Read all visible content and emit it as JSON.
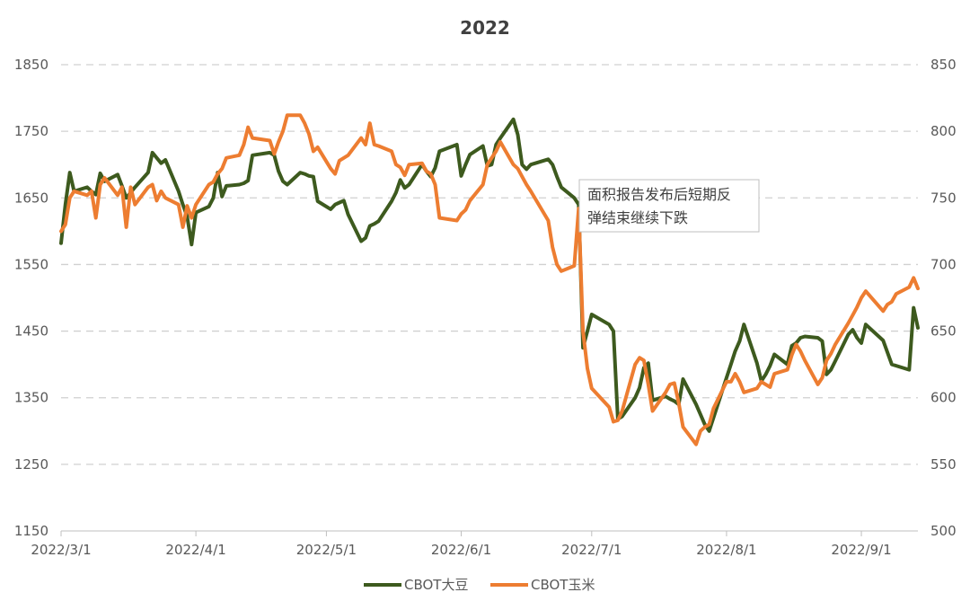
{
  "chart_data": {
    "type": "line",
    "title": "2022",
    "legend_position": "bottom",
    "grid": "horizontal dashed",
    "x_ticks": [
      "2022/3/1",
      "2022/4/1",
      "2022/5/1",
      "2022/6/1",
      "2022/7/1",
      "2022/8/1",
      "2022/9/1"
    ],
    "x_range": [
      "2022-03-01",
      "2022-09-14"
    ],
    "y_left": {
      "ylim": [
        1150,
        1850
      ],
      "ticks": [
        1150,
        1250,
        1350,
        1450,
        1550,
        1650,
        1750,
        1850
      ]
    },
    "y_right": {
      "ylim": [
        500,
        850
      ],
      "ticks": [
        500,
        550,
        600,
        650,
        700,
        750,
        800,
        850
      ]
    },
    "series": [
      {
        "name": "CBOT大豆",
        "axis": "left",
        "color": "#3d5a1e",
        "points": [
          [
            "2022-03-01",
            1582
          ],
          [
            "2022-03-02",
            1640
          ],
          [
            "2022-03-03",
            1688
          ],
          [
            "2022-03-04",
            1660
          ],
          [
            "2022-03-07",
            1666
          ],
          [
            "2022-03-08",
            1660
          ],
          [
            "2022-03-09",
            1655
          ],
          [
            "2022-03-10",
            1687
          ],
          [
            "2022-03-11",
            1675
          ],
          [
            "2022-03-14",
            1685
          ],
          [
            "2022-03-15",
            1668
          ],
          [
            "2022-03-16",
            1650
          ],
          [
            "2022-03-17",
            1658
          ],
          [
            "2022-03-18",
            1666
          ],
          [
            "2022-03-21",
            1688
          ],
          [
            "2022-03-22",
            1718
          ],
          [
            "2022-03-23",
            1710
          ],
          [
            "2022-03-24",
            1702
          ],
          [
            "2022-03-25",
            1707
          ],
          [
            "2022-03-28",
            1660
          ],
          [
            "2022-03-29",
            1640
          ],
          [
            "2022-03-30",
            1622
          ],
          [
            "2022-03-31",
            1580
          ],
          [
            "2022-04-01",
            1628
          ],
          [
            "2022-04-04",
            1637
          ],
          [
            "2022-04-05",
            1650
          ],
          [
            "2022-04-06",
            1688
          ],
          [
            "2022-04-07",
            1652
          ],
          [
            "2022-04-08",
            1668
          ],
          [
            "2022-04-11",
            1670
          ],
          [
            "2022-04-12",
            1672
          ],
          [
            "2022-04-13",
            1676
          ],
          [
            "2022-04-14",
            1714
          ],
          [
            "2022-04-18",
            1718
          ],
          [
            "2022-04-19",
            1714
          ],
          [
            "2022-04-20",
            1690
          ],
          [
            "2022-04-21",
            1675
          ],
          [
            "2022-04-22",
            1670
          ],
          [
            "2022-04-25",
            1688
          ],
          [
            "2022-04-26",
            1686
          ],
          [
            "2022-04-27",
            1683
          ],
          [
            "2022-04-28",
            1682
          ],
          [
            "2022-04-29",
            1645
          ],
          [
            "2022-05-02",
            1633
          ],
          [
            "2022-05-03",
            1640
          ],
          [
            "2022-05-04",
            1643
          ],
          [
            "2022-05-05",
            1646
          ],
          [
            "2022-05-06",
            1625
          ],
          [
            "2022-05-09",
            1585
          ],
          [
            "2022-05-10",
            1590
          ],
          [
            "2022-05-11",
            1608
          ],
          [
            "2022-05-12",
            1611
          ],
          [
            "2022-05-13",
            1615
          ],
          [
            "2022-05-16",
            1645
          ],
          [
            "2022-05-17",
            1658
          ],
          [
            "2022-05-18",
            1677
          ],
          [
            "2022-05-19",
            1665
          ],
          [
            "2022-05-20",
            1670
          ],
          [
            "2022-05-23",
            1700
          ],
          [
            "2022-05-24",
            1690
          ],
          [
            "2022-05-25",
            1682
          ],
          [
            "2022-05-26",
            1695
          ],
          [
            "2022-05-27",
            1720
          ],
          [
            "2022-05-31",
            1730
          ],
          [
            "2022-06-01",
            1683
          ],
          [
            "2022-06-02",
            1700
          ],
          [
            "2022-06-03",
            1715
          ],
          [
            "2022-06-06",
            1728
          ],
          [
            "2022-06-07",
            1698
          ],
          [
            "2022-06-08",
            1700
          ],
          [
            "2022-06-09",
            1730
          ],
          [
            "2022-06-10",
            1740
          ],
          [
            "2022-06-13",
            1768
          ],
          [
            "2022-06-14",
            1745
          ],
          [
            "2022-06-15",
            1700
          ],
          [
            "2022-06-16",
            1693
          ],
          [
            "2022-06-17",
            1700
          ],
          [
            "2022-06-21",
            1708
          ],
          [
            "2022-06-22",
            1700
          ],
          [
            "2022-06-23",
            1682
          ],
          [
            "2022-06-24",
            1666
          ],
          [
            "2022-06-27",
            1650
          ],
          [
            "2022-06-28",
            1640
          ],
          [
            "2022-06-29",
            1425
          ],
          [
            "2022-06-30",
            1450
          ],
          [
            "2022-07-01",
            1475
          ],
          [
            "2022-07-05",
            1460
          ],
          [
            "2022-07-06",
            1450
          ],
          [
            "2022-07-07",
            1318
          ],
          [
            "2022-07-08",
            1322
          ],
          [
            "2022-07-11",
            1350
          ],
          [
            "2022-07-12",
            1365
          ],
          [
            "2022-07-13",
            1395
          ],
          [
            "2022-07-14",
            1402
          ],
          [
            "2022-07-15",
            1346
          ],
          [
            "2022-07-18",
            1352
          ],
          [
            "2022-07-19",
            1348
          ],
          [
            "2022-07-20",
            1345
          ],
          [
            "2022-07-21",
            1340
          ],
          [
            "2022-07-22",
            1378
          ],
          [
            "2022-07-25",
            1340
          ],
          [
            "2022-07-26",
            1325
          ],
          [
            "2022-07-27",
            1310
          ],
          [
            "2022-07-28",
            1300
          ],
          [
            "2022-07-29",
            1320
          ],
          [
            "2022-08-01",
            1380
          ],
          [
            "2022-08-02",
            1400
          ],
          [
            "2022-08-03",
            1420
          ],
          [
            "2022-08-04",
            1435
          ],
          [
            "2022-08-05",
            1460
          ],
          [
            "2022-08-08",
            1402
          ],
          [
            "2022-08-09",
            1375
          ],
          [
            "2022-08-10",
            1385
          ],
          [
            "2022-08-11",
            1398
          ],
          [
            "2022-08-12",
            1415
          ],
          [
            "2022-08-15",
            1400
          ],
          [
            "2022-08-16",
            1428
          ],
          [
            "2022-08-17",
            1432
          ],
          [
            "2022-08-18",
            1440
          ],
          [
            "2022-08-19",
            1442
          ],
          [
            "2022-08-22",
            1440
          ],
          [
            "2022-08-23",
            1435
          ],
          [
            "2022-08-24",
            1385
          ],
          [
            "2022-08-25",
            1392
          ],
          [
            "2022-08-26",
            1405
          ],
          [
            "2022-08-29",
            1445
          ],
          [
            "2022-08-30",
            1452
          ],
          [
            "2022-08-31",
            1440
          ],
          [
            "2022-09-01",
            1432
          ],
          [
            "2022-09-02",
            1460
          ],
          [
            "2022-09-06",
            1436
          ],
          [
            "2022-09-07",
            1418
          ],
          [
            "2022-09-08",
            1400
          ],
          [
            "2022-09-09",
            1398
          ],
          [
            "2022-09-12",
            1392
          ],
          [
            "2022-09-13",
            1485
          ],
          [
            "2022-09-14",
            1455
          ]
        ]
      },
      {
        "name": "CBOT玉米",
        "axis": "right",
        "color": "#ed7d31",
        "points": [
          [
            "2022-03-01",
            725
          ],
          [
            "2022-03-02",
            730
          ],
          [
            "2022-03-03",
            750
          ],
          [
            "2022-03-04",
            755
          ],
          [
            "2022-03-07",
            752
          ],
          [
            "2022-03-08",
            755
          ],
          [
            "2022-03-09",
            735
          ],
          [
            "2022-03-10",
            760
          ],
          [
            "2022-03-11",
            765
          ],
          [
            "2022-03-14",
            752
          ],
          [
            "2022-03-15",
            758
          ],
          [
            "2022-03-16",
            728
          ],
          [
            "2022-03-17",
            758
          ],
          [
            "2022-03-18",
            745
          ],
          [
            "2022-03-21",
            758
          ],
          [
            "2022-03-22",
            760
          ],
          [
            "2022-03-23",
            748
          ],
          [
            "2022-03-24",
            755
          ],
          [
            "2022-03-25",
            750
          ],
          [
            "2022-03-28",
            745
          ],
          [
            "2022-03-29",
            728
          ],
          [
            "2022-03-30",
            744
          ],
          [
            "2022-03-31",
            735
          ],
          [
            "2022-04-01",
            745
          ],
          [
            "2022-04-04",
            760
          ],
          [
            "2022-04-05",
            762
          ],
          [
            "2022-04-06",
            768
          ],
          [
            "2022-04-07",
            772
          ],
          [
            "2022-04-08",
            780
          ],
          [
            "2022-04-11",
            782
          ],
          [
            "2022-04-12",
            790
          ],
          [
            "2022-04-13",
            803
          ],
          [
            "2022-04-14",
            795
          ],
          [
            "2022-04-18",
            793
          ],
          [
            "2022-04-19",
            783
          ],
          [
            "2022-04-20",
            792
          ],
          [
            "2022-04-21",
            800
          ],
          [
            "2022-04-22",
            812
          ],
          [
            "2022-04-25",
            812
          ],
          [
            "2022-04-26",
            806
          ],
          [
            "2022-04-27",
            798
          ],
          [
            "2022-04-28",
            785
          ],
          [
            "2022-04-29",
            788
          ],
          [
            "2022-05-02",
            772
          ],
          [
            "2022-05-03",
            768
          ],
          [
            "2022-05-04",
            778
          ],
          [
            "2022-05-05",
            780
          ],
          [
            "2022-05-06",
            782
          ],
          [
            "2022-05-09",
            795
          ],
          [
            "2022-05-10",
            790
          ],
          [
            "2022-05-11",
            806
          ],
          [
            "2022-05-12",
            790
          ],
          [
            "2022-05-13",
            789
          ],
          [
            "2022-05-16",
            785
          ],
          [
            "2022-05-17",
            775
          ],
          [
            "2022-05-18",
            773
          ],
          [
            "2022-05-19",
            767
          ],
          [
            "2022-05-20",
            775
          ],
          [
            "2022-05-23",
            776
          ],
          [
            "2022-05-24",
            770
          ],
          [
            "2022-05-25",
            768
          ],
          [
            "2022-05-26",
            760
          ],
          [
            "2022-05-27",
            735
          ],
          [
            "2022-05-31",
            733
          ],
          [
            "2022-06-01",
            738
          ],
          [
            "2022-06-02",
            741
          ],
          [
            "2022-06-03",
            748
          ],
          [
            "2022-06-06",
            760
          ],
          [
            "2022-06-07",
            775
          ],
          [
            "2022-06-08",
            780
          ],
          [
            "2022-06-09",
            785
          ],
          [
            "2022-06-10",
            792
          ],
          [
            "2022-06-13",
            775
          ],
          [
            "2022-06-14",
            772
          ],
          [
            "2022-06-15",
            766
          ],
          [
            "2022-06-16",
            760
          ],
          [
            "2022-06-17",
            755
          ],
          [
            "2022-06-21",
            733
          ],
          [
            "2022-06-22",
            713
          ],
          [
            "2022-06-23",
            700
          ],
          [
            "2022-06-24",
            695
          ],
          [
            "2022-06-27",
            699
          ],
          [
            "2022-06-28",
            742
          ],
          [
            "2022-06-29",
            650
          ],
          [
            "2022-06-30",
            622
          ],
          [
            "2022-07-01",
            607
          ],
          [
            "2022-07-05",
            593
          ],
          [
            "2022-07-06",
            582
          ],
          [
            "2022-07-07",
            583
          ],
          [
            "2022-07-08",
            590
          ],
          [
            "2022-07-11",
            625
          ],
          [
            "2022-07-12",
            630
          ],
          [
            "2022-07-13",
            628
          ],
          [
            "2022-07-14",
            610
          ],
          [
            "2022-07-15",
            590
          ],
          [
            "2022-07-18",
            604
          ],
          [
            "2022-07-19",
            610
          ],
          [
            "2022-07-20",
            611
          ],
          [
            "2022-07-21",
            596
          ],
          [
            "2022-07-22",
            578
          ],
          [
            "2022-07-25",
            565
          ],
          [
            "2022-07-26",
            575
          ],
          [
            "2022-07-27",
            578
          ],
          [
            "2022-07-28",
            580
          ],
          [
            "2022-07-29",
            592
          ],
          [
            "2022-08-01",
            612
          ],
          [
            "2022-08-02",
            612
          ],
          [
            "2022-08-03",
            618
          ],
          [
            "2022-08-04",
            612
          ],
          [
            "2022-08-05",
            604
          ],
          [
            "2022-08-08",
            607
          ],
          [
            "2022-08-09",
            612
          ],
          [
            "2022-08-10",
            610
          ],
          [
            "2022-08-11",
            608
          ],
          [
            "2022-08-12",
            618
          ],
          [
            "2022-08-15",
            621
          ],
          [
            "2022-08-16",
            632
          ],
          [
            "2022-08-17",
            640
          ],
          [
            "2022-08-18",
            635
          ],
          [
            "2022-08-19",
            628
          ],
          [
            "2022-08-22",
            610
          ],
          [
            "2022-08-23",
            615
          ],
          [
            "2022-08-24",
            628
          ],
          [
            "2022-08-25",
            633
          ],
          [
            "2022-08-26",
            640
          ],
          [
            "2022-08-29",
            656
          ],
          [
            "2022-08-30",
            662
          ],
          [
            "2022-08-31",
            668
          ],
          [
            "2022-09-01",
            675
          ],
          [
            "2022-09-02",
            680
          ],
          [
            "2022-09-06",
            665
          ],
          [
            "2022-09-07",
            670
          ],
          [
            "2022-09-08",
            672
          ],
          [
            "2022-09-09",
            678
          ],
          [
            "2022-09-12",
            683
          ],
          [
            "2022-09-13",
            690
          ],
          [
            "2022-09-14",
            682
          ]
        ]
      }
    ],
    "annotation": {
      "lines": [
        "面积报告发布后短期反",
        "弹结束继续下跌"
      ],
      "anchor": [
        "2022-06-28",
        742,
        "right"
      ]
    }
  }
}
